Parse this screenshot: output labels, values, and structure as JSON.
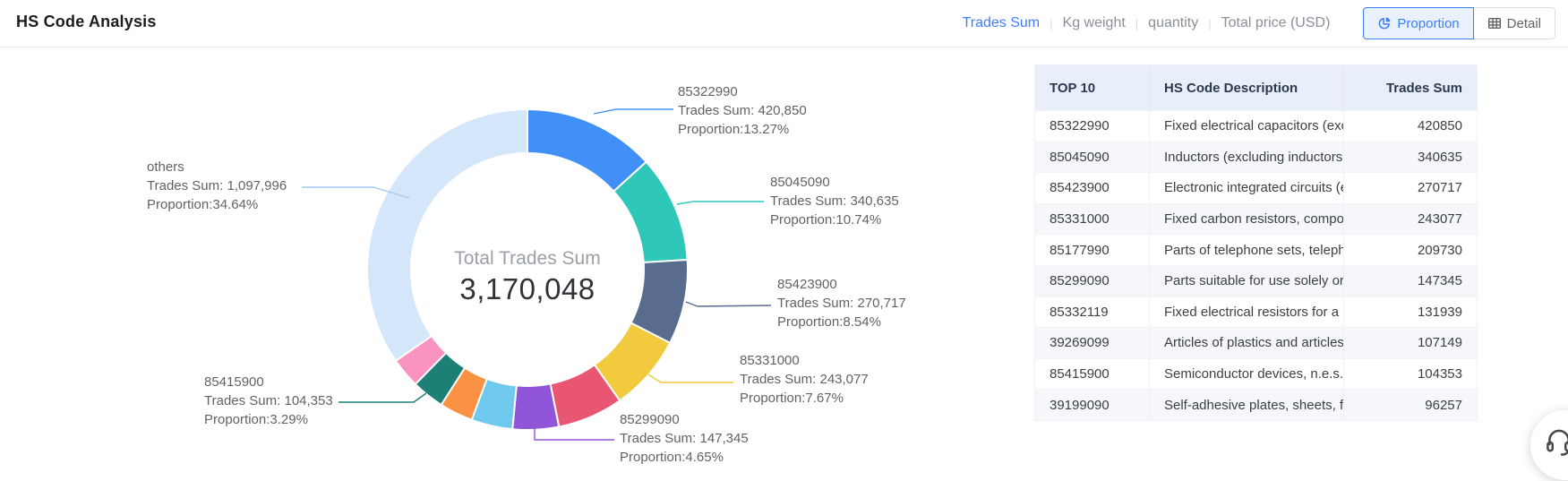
{
  "header": {
    "title": "HS Code Analysis",
    "metric_tabs": [
      {
        "label": "Trades Sum",
        "active": true
      },
      {
        "label": "Kg weight",
        "active": false
      },
      {
        "label": "quantity",
        "active": false
      },
      {
        "label": "Total price (USD)",
        "active": false
      }
    ],
    "view_toggle": [
      {
        "label": "Proportion",
        "icon": "pie-chart-icon",
        "active": true
      },
      {
        "label": "Detail",
        "icon": "table-icon",
        "active": false
      }
    ]
  },
  "chart_data": {
    "type": "pie",
    "style": "donut",
    "center_label": "Total Trades Sum",
    "center_value": "3,170,048",
    "total": 3170048,
    "legend_position": "none",
    "label_prefix_sum": "Trades Sum: ",
    "label_prefix_proportion": "Proportion:",
    "slices": [
      {
        "name": "85322990",
        "value": 420850,
        "value_display": "420,850",
        "proportion": "13.27%",
        "color": "#4090f7",
        "label_visible": true
      },
      {
        "name": "85045090",
        "value": 340635,
        "value_display": "340,635",
        "proportion": "10.74%",
        "color": "#2fc7b9",
        "label_visible": true
      },
      {
        "name": "85423900",
        "value": 270717,
        "value_display": "270,717",
        "proportion": "8.54%",
        "color": "#5a6c8e",
        "label_visible": true
      },
      {
        "name": "85331000",
        "value": 243077,
        "value_display": "243,077",
        "proportion": "7.67%",
        "color": "#f2ca3d",
        "label_visible": true
      },
      {
        "name": "85177990",
        "value": 209730,
        "value_display": "209,730",
        "proportion": "",
        "color": "#e85672",
        "label_visible": false
      },
      {
        "name": "85299090",
        "value": 147345,
        "value_display": "147,345",
        "proportion": "4.65%",
        "color": "#9155d9",
        "label_visible": true
      },
      {
        "name": "85332119",
        "value": 131939,
        "value_display": "131,939",
        "proportion": "",
        "color": "#6fc8ee",
        "label_visible": false
      },
      {
        "name": "39269099",
        "value": 107149,
        "value_display": "107,149",
        "proportion": "",
        "color": "#fb9243",
        "label_visible": false
      },
      {
        "name": "85415900",
        "value": 104353,
        "value_display": "104,353",
        "proportion": "3.29%",
        "color": "#1c8076",
        "label_visible": true
      },
      {
        "name": "39199090",
        "value": 96257,
        "value_display": "96,257",
        "proportion": "",
        "color": "#fb93c1",
        "label_visible": false
      },
      {
        "name": "others",
        "value": 1097996,
        "value_display": "1,097,996",
        "proportion": "34.64%",
        "color": "#d4e6fa",
        "label_visible": true
      }
    ]
  },
  "table": {
    "columns": [
      "TOP 10",
      "HS Code Description",
      "Trades Sum"
    ],
    "rows": [
      [
        "85322990",
        "Fixed electrical capacitors (exclu...",
        "420850"
      ],
      [
        "85045090",
        "Inductors (excluding inductors f...",
        "340635"
      ],
      [
        "85423900",
        "Electronic integrated circuits (ex...",
        "270717"
      ],
      [
        "85331000",
        "Fixed carbon resistors, composit...",
        "243077"
      ],
      [
        "85177990",
        "Parts of telephone sets, telepho...",
        "209730"
      ],
      [
        "85299090",
        "Parts suitable for use solely or p...",
        "147345"
      ],
      [
        "85332119",
        "Fixed electrical resistors for a po...",
        "131939"
      ],
      [
        "39269099",
        "Articles of plastics and articles o...",
        "107149"
      ],
      [
        "85415900",
        "Semiconductor devices, n.e.s.",
        "104353"
      ],
      [
        "39199090",
        "Self-adhesive plates, sheets, fil...",
        "96257"
      ]
    ]
  },
  "fab": {
    "icon": "headset-icon"
  },
  "colors": {
    "accent_blue": "#3d7ff5",
    "tab_inactive": "#8a9099",
    "divider": "#e8eaed",
    "table_header_bg": "#e9eefb",
    "table_header_text": "#2c3850",
    "table_row_alt_bg": "#f5f7fa",
    "label_text": "#5f6368",
    "center_label_color": "#9aa0a6",
    "center_value_color": "#2f3338",
    "others_leader": "#a6c9ef"
  }
}
